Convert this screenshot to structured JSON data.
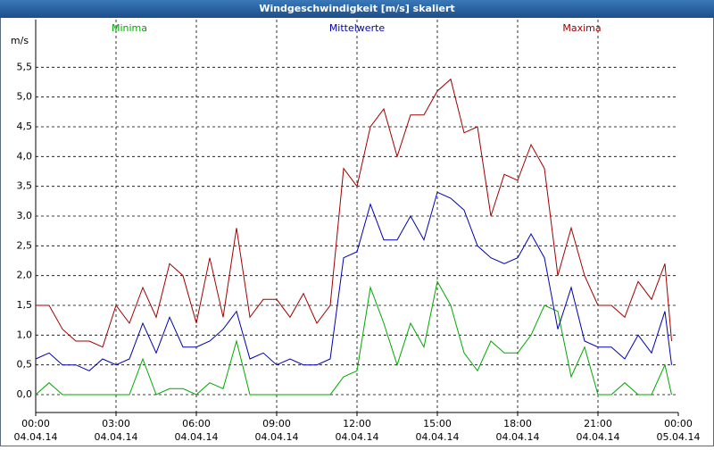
{
  "chart_data": {
    "type": "line",
    "title": "Windgeschwindigkeit [m/s] skaliert",
    "y_unit": "m/s",
    "grid": true,
    "xlim": [
      0,
      24
    ],
    "ylim": [
      -0.3,
      6.3
    ],
    "xticks": [
      {
        "value": 0,
        "label": "00:00"
      },
      {
        "value": 3,
        "label": "03:00"
      },
      {
        "value": 6,
        "label": "06:00"
      },
      {
        "value": 9,
        "label": "09:00"
      },
      {
        "value": 12,
        "label": "12:00"
      },
      {
        "value": 15,
        "label": "15:00"
      },
      {
        "value": 18,
        "label": "18:00"
      },
      {
        "value": 21,
        "label": "21:00"
      },
      {
        "value": 24,
        "label": "00:00"
      }
    ],
    "xtick_dates": [
      "04.04.14",
      "04.04.14",
      "04.04.14",
      "04.04.14",
      "04.04.14",
      "04.04.14",
      "04.04.14",
      "04.04.14",
      "05.04.14"
    ],
    "yticks": [
      {
        "value": 0,
        "label": "0,0"
      },
      {
        "value": 0.5,
        "label": "0,5"
      },
      {
        "value": 1,
        "label": "1,0"
      },
      {
        "value": 1.5,
        "label": "1,5"
      },
      {
        "value": 2,
        "label": "2,0"
      },
      {
        "value": 2.5,
        "label": "2,5"
      },
      {
        "value": 3,
        "label": "3,0"
      },
      {
        "value": 3.5,
        "label": "3,5"
      },
      {
        "value": 4,
        "label": "4,0"
      },
      {
        "value": 4.5,
        "label": "4,5"
      },
      {
        "value": 5,
        "label": "5,0"
      },
      {
        "value": 5.5,
        "label": "5,5"
      }
    ],
    "x": [
      0,
      0.5,
      1,
      1.5,
      2,
      2.5,
      3,
      3.5,
      4,
      4.5,
      5,
      5.5,
      6,
      6.5,
      7,
      7.5,
      8,
      8.5,
      9,
      9.5,
      10,
      10.5,
      11,
      11.5,
      12,
      12.5,
      13,
      13.5,
      14,
      14.5,
      15,
      15.5,
      16,
      16.5,
      17,
      17.5,
      18,
      18.5,
      19,
      19.5,
      20,
      20.5,
      21,
      21.5,
      22,
      22.5,
      23,
      23.5,
      23.75
    ],
    "series": [
      {
        "name": "Minima",
        "color": "#00a800",
        "values": [
          0,
          0.2,
          0,
          0,
          0,
          0,
          0,
          0,
          0.6,
          0,
          0.1,
          0.1,
          0,
          0.2,
          0.1,
          0.9,
          0,
          0,
          0,
          0,
          0,
          0,
          0,
          0.3,
          0.4,
          1.8,
          1.2,
          0.5,
          1.2,
          0.8,
          1.9,
          1.5,
          0.7,
          0.4,
          0.9,
          0.7,
          0.7,
          1.0,
          1.5,
          1.4,
          0.3,
          0.8,
          0,
          0,
          0.2,
          0,
          0,
          0.5,
          0
        ]
      },
      {
        "name": "Mittelwerte",
        "color": "#0000b0",
        "values": [
          0.6,
          0.7,
          0.5,
          0.5,
          0.4,
          0.6,
          0.5,
          0.6,
          1.2,
          0.7,
          1.3,
          0.8,
          0.8,
          0.9,
          1.1,
          1.4,
          0.6,
          0.7,
          0.5,
          0.6,
          0.5,
          0.5,
          0.6,
          2.3,
          2.4,
          3.2,
          2.6,
          2.6,
          3.0,
          2.6,
          3.4,
          3.3,
          3.1,
          2.5,
          2.3,
          2.2,
          2.3,
          2.7,
          2.3,
          1.1,
          1.8,
          0.9,
          0.8,
          0.8,
          0.6,
          1.0,
          0.7,
          1.4,
          0.5
        ]
      },
      {
        "name": "Maxima",
        "color": "#a00000",
        "values": [
          1.5,
          1.5,
          1.1,
          0.9,
          0.9,
          0.8,
          1.5,
          1.2,
          1.8,
          1.3,
          2.2,
          2.0,
          1.2,
          2.3,
          1.3,
          2.8,
          1.3,
          1.6,
          1.6,
          1.3,
          1.7,
          1.2,
          1.5,
          3.8,
          3.5,
          4.5,
          4.8,
          4.0,
          4.7,
          4.7,
          5.1,
          5.3,
          4.4,
          4.5,
          3.0,
          3.7,
          3.6,
          4.2,
          3.8,
          2.0,
          2.8,
          2.0,
          1.5,
          1.5,
          1.3,
          1.9,
          1.6,
          2.2,
          0.9
        ]
      }
    ]
  }
}
